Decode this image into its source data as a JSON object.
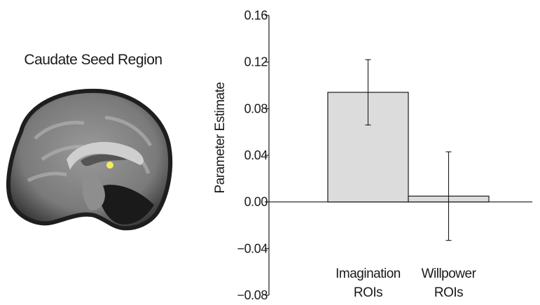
{
  "figure": {
    "seed_title": "Caudate Seed Region"
  },
  "colors": {
    "bar_fill": "#dcdcdc",
    "bar_stroke": "#1a1a1a",
    "axis": "#1a1a1a",
    "seed_highlight": "#f2ee5a"
  },
  "chart_data": {
    "type": "bar",
    "categories": [
      [
        "Imagination",
        "ROIs"
      ],
      [
        "Willpower",
        "ROIs"
      ]
    ],
    "values": [
      0.094,
      0.005
    ],
    "error": [
      0.028,
      0.038
    ],
    "title": "",
    "xlabel": "",
    "ylabel": "Parameter Estimate",
    "ylim": [
      -0.08,
      0.16
    ],
    "yticks": [
      -0.08,
      -0.04,
      0.0,
      0.04,
      0.08,
      0.12,
      0.16
    ],
    "ytick_labels": [
      "−0.08",
      "−0.04",
      "0.00",
      "0.04",
      "0.08",
      "0.12",
      "0.16"
    ],
    "grid": false,
    "legend": "none"
  }
}
